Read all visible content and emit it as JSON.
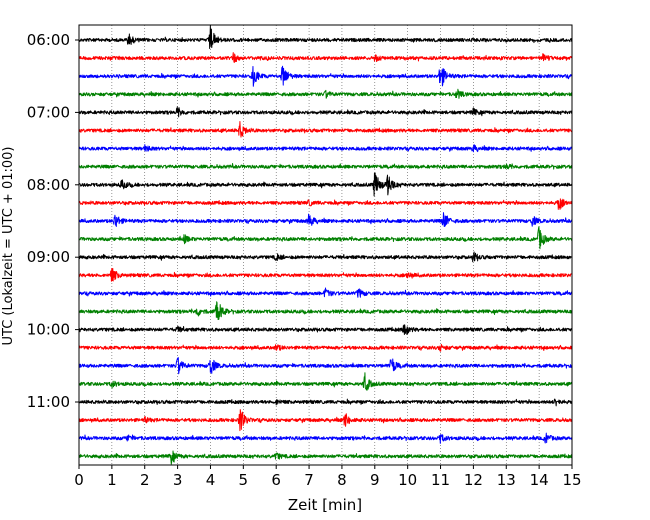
{
  "chart_data": {
    "type": "line",
    "title": "",
    "xlabel": "Zeit  [min]",
    "ylabel": "UTC (Lokalzeit = UTC + 01:00)",
    "xlim": [
      0,
      15
    ],
    "x_ticks": [
      "0",
      "1",
      "2",
      "3",
      "4",
      "5",
      "6",
      "7",
      "8",
      "9",
      "10",
      "11",
      "12",
      "13",
      "14",
      "15"
    ],
    "y_ticks": [
      "06:00",
      "07:00",
      "08:00",
      "09:00",
      "10:00",
      "11:00"
    ],
    "grid": "vertical dotted lines at each minute",
    "trace_interval_minutes": 15,
    "color_cycle": [
      "#000000",
      "#ff0000",
      "#0000ff",
      "#008000"
    ],
    "traces": [
      {
        "start": "06:00",
        "events": [
          {
            "t": 1.5,
            "amp": 0.45
          },
          {
            "t": 4.0,
            "amp": 0.9
          }
        ]
      },
      {
        "start": "06:15",
        "events": [
          {
            "t": 4.7,
            "amp": 0.3
          },
          {
            "t": 9.0,
            "amp": 0.2
          },
          {
            "t": 14.1,
            "amp": 0.25
          }
        ]
      },
      {
        "start": "06:30",
        "events": [
          {
            "t": 5.3,
            "amp": 0.65
          },
          {
            "t": 6.2,
            "amp": 0.8
          },
          {
            "t": 11.0,
            "amp": 0.95
          }
        ]
      },
      {
        "start": "06:45",
        "events": [
          {
            "t": 11.5,
            "amp": 0.3
          },
          {
            "t": 7.5,
            "amp": 0.2
          }
        ]
      },
      {
        "start": "07:00",
        "events": [
          {
            "t": 3.0,
            "amp": 0.3
          },
          {
            "t": 12.0,
            "amp": 0.2
          }
        ]
      },
      {
        "start": "07:15",
        "events": [
          {
            "t": 4.9,
            "amp": 0.55
          }
        ]
      },
      {
        "start": "07:30",
        "events": [
          {
            "t": 2.0,
            "amp": 0.2
          },
          {
            "t": 12.0,
            "amp": 0.2
          }
        ]
      },
      {
        "start": "07:45",
        "events": [
          {
            "t": 13.0,
            "amp": 0.15
          }
        ]
      },
      {
        "start": "08:00",
        "events": [
          {
            "t": 9.0,
            "amp": 0.95
          },
          {
            "t": 9.4,
            "amp": 0.75
          },
          {
            "t": 1.3,
            "amp": 0.3
          }
        ]
      },
      {
        "start": "08:15",
        "events": [
          {
            "t": 14.6,
            "amp": 0.45
          },
          {
            "t": 7.0,
            "amp": 0.15
          }
        ]
      },
      {
        "start": "08:30",
        "events": [
          {
            "t": 1.1,
            "amp": 0.5
          },
          {
            "t": 7.0,
            "amp": 0.45
          },
          {
            "t": 11.1,
            "amp": 0.6
          },
          {
            "t": 13.8,
            "amp": 0.3
          }
        ]
      },
      {
        "start": "08:45",
        "events": [
          {
            "t": 14.0,
            "amp": 0.8
          },
          {
            "t": 3.2,
            "amp": 0.25
          }
        ]
      },
      {
        "start": "09:00",
        "events": [
          {
            "t": 12.0,
            "amp": 0.3
          },
          {
            "t": 6.0,
            "amp": 0.2
          }
        ]
      },
      {
        "start": "09:15",
        "events": [
          {
            "t": 1.0,
            "amp": 0.5
          },
          {
            "t": 10.0,
            "amp": 0.2
          }
        ]
      },
      {
        "start": "09:30",
        "events": [
          {
            "t": 7.5,
            "amp": 0.3
          },
          {
            "t": 8.5,
            "amp": 0.3
          }
        ]
      },
      {
        "start": "09:45",
        "events": [
          {
            "t": 4.2,
            "amp": 0.9
          },
          {
            "t": 3.6,
            "amp": 0.3
          }
        ]
      },
      {
        "start": "10:00",
        "events": [
          {
            "t": 9.9,
            "amp": 0.45
          },
          {
            "t": 3.0,
            "amp": 0.15
          }
        ]
      },
      {
        "start": "10:15",
        "events": [
          {
            "t": 6.0,
            "amp": 0.2
          },
          {
            "t": 11.0,
            "amp": 0.2
          }
        ]
      },
      {
        "start": "10:30",
        "events": [
          {
            "t": 3.0,
            "amp": 0.6
          },
          {
            "t": 4.0,
            "amp": 0.65
          },
          {
            "t": 9.5,
            "amp": 0.55
          }
        ]
      },
      {
        "start": "10:45",
        "events": [
          {
            "t": 8.7,
            "amp": 0.6
          },
          {
            "t": 1.0,
            "amp": 0.2
          }
        ]
      },
      {
        "start": "11:00",
        "events": [
          {
            "t": 14.5,
            "amp": 0.25
          },
          {
            "t": 6.0,
            "amp": 0.15
          }
        ]
      },
      {
        "start": "11:15",
        "events": [
          {
            "t": 4.9,
            "amp": 0.85
          },
          {
            "t": 8.1,
            "amp": 0.45
          },
          {
            "t": 2.0,
            "amp": 0.15
          }
        ]
      },
      {
        "start": "11:30",
        "events": [
          {
            "t": 11.0,
            "amp": 0.25
          },
          {
            "t": 14.2,
            "amp": 0.3
          },
          {
            "t": 1.5,
            "amp": 0.2
          }
        ]
      },
      {
        "start": "11:45",
        "events": [
          {
            "t": 2.8,
            "amp": 0.45
          },
          {
            "t": 6.0,
            "amp": 0.2
          }
        ]
      }
    ]
  }
}
